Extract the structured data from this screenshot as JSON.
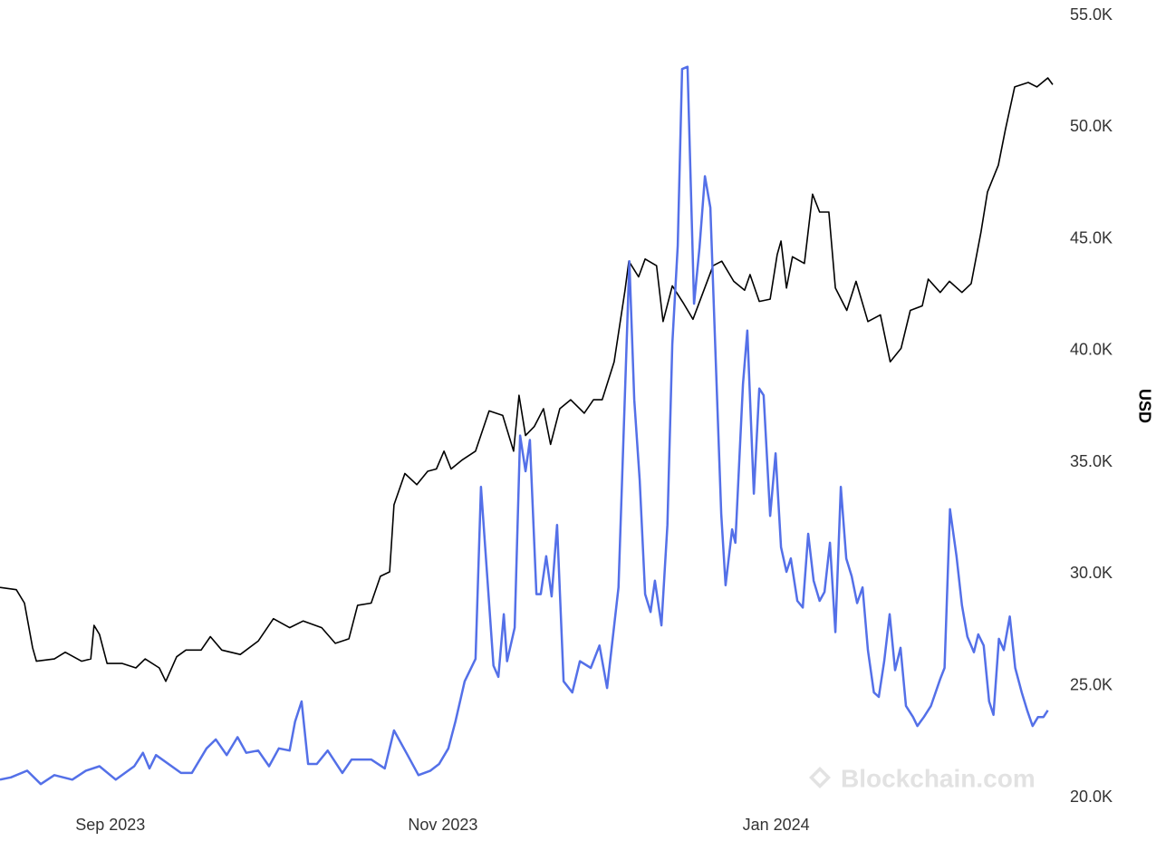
{
  "chart_data": {
    "type": "line",
    "y_label": "USD",
    "watermark": "Blockchain.com",
    "xlim": [
      0,
      212.7
    ],
    "xticks": [
      {
        "value": 20.3,
        "label": "Sep 2023"
      },
      {
        "value": 81.5,
        "label": "Nov 2023"
      },
      {
        "value": 142.8,
        "label": "Jan 2024"
      }
    ],
    "ylim": [
      20000,
      55000
    ],
    "yticks": [
      {
        "value": 20000,
        "label": "20.0K"
      },
      {
        "value": 25000,
        "label": "25.0K"
      },
      {
        "value": 30000,
        "label": "30.0K"
      },
      {
        "value": 35000,
        "label": "35.0K"
      },
      {
        "value": 40000,
        "label": "40.0K"
      },
      {
        "value": 45000,
        "label": "45.0K"
      },
      {
        "value": 50000,
        "label": "50.0K"
      },
      {
        "value": 55000,
        "label": "55.0K"
      }
    ],
    "grid": false,
    "series": [
      {
        "color": "#000000",
        "x": [
          0,
          3,
          4.5,
          6,
          6.7,
          10,
          12,
          15,
          16.7,
          17.3,
          18.3,
          19.7,
          22.5,
          25,
          26.7,
          29.3,
          30.5,
          32.5,
          34.2,
          37,
          38.7,
          40.8,
          44.2,
          47.5,
          50.3,
          53.3,
          55.8,
          59.2,
          61.7,
          64.2,
          65.8,
          68.3,
          70,
          71.7,
          72.5,
          74.5,
          76.7,
          78.7,
          80.3,
          81.7,
          83,
          85,
          87.5,
          90,
          92.5,
          94.5,
          95.5,
          96.7,
          98.3,
          100,
          101.3,
          103,
          105,
          107.5,
          109.2,
          110.8,
          113,
          115,
          115.7,
          117.5,
          118.7,
          120.8,
          122,
          123.7,
          125.8,
          127.5,
          129.2,
          131.2,
          132.8,
          135,
          137,
          138,
          139.7,
          141.7,
          143,
          143.7,
          144.7,
          145.8,
          148,
          149.5,
          150.8,
          152.5,
          153.7,
          155.8,
          157.5,
          159.7,
          162,
          163.8,
          165.8,
          167.5,
          169.7,
          170.8,
          173,
          174.7,
          177,
          178.7,
          180.5,
          181.7,
          183.7,
          185,
          186.7,
          189.2,
          190.8,
          192.8,
          193.7
        ],
        "values": [
          29400,
          29300,
          28700,
          26700,
          26100,
          26200,
          26500,
          26100,
          26200,
          27700,
          27300,
          26000,
          26000,
          25800,
          26200,
          25800,
          25200,
          26300,
          26600,
          26600,
          27200,
          26600,
          26400,
          27000,
          28000,
          27600,
          27900,
          27600,
          26900,
          27100,
          28600,
          28700,
          29900,
          30100,
          33100,
          34500,
          34000,
          34600,
          34700,
          35500,
          34700,
          35100,
          35500,
          37300,
          37100,
          35500,
          38000,
          36200,
          36600,
          37400,
          35800,
          37400,
          37800,
          37200,
          37800,
          37800,
          39500,
          42700,
          44000,
          43300,
          44100,
          43800,
          41300,
          42900,
          42100,
          41400,
          42500,
          43800,
          44000,
          43100,
          42700,
          43400,
          42200,
          42300,
          44300,
          44900,
          42800,
          44200,
          43900,
          47000,
          46200,
          46200,
          42800,
          41800,
          43100,
          41300,
          41600,
          39500,
          40100,
          41800,
          42000,
          43200,
          42600,
          43100,
          42600,
          43000,
          45300,
          47100,
          48300,
          49900,
          51800,
          52000,
          51800,
          52200,
          51900
        ]
      },
      {
        "color": "#5470e8",
        "x": [
          0,
          2,
          5,
          7.5,
          10,
          13.3,
          15.8,
          18.3,
          21.3,
          24.7,
          26.3,
          27.5,
          28.7,
          33.3,
          35.3,
          38,
          39.7,
          41.7,
          43.7,
          45.3,
          47.5,
          49.5,
          51.3,
          53.3,
          54.3,
          55.5,
          56.7,
          58.3,
          60.3,
          63,
          64.7,
          68.3,
          70.8,
          72.5,
          75,
          77,
          79.2,
          80.8,
          82.5,
          83.8,
          85.5,
          87.5,
          88.5,
          90.8,
          91.7,
          92.7,
          93.3,
          94.7,
          95.7,
          96.7,
          97.5,
          98.7,
          99.5,
          100.5,
          101.5,
          102.5,
          103.7,
          105.3,
          106.7,
          108.7,
          110.3,
          111.7,
          113.8,
          115.8,
          116.7,
          117.7,
          118.7,
          119.7,
          120.5,
          121.7,
          122.8,
          123.7,
          124.7,
          125.5,
          126.5,
          127.7,
          128.7,
          129.7,
          130.7,
          131.7,
          132.7,
          133.5,
          134.7,
          135.3,
          136.7,
          137.5,
          138.7,
          139.7,
          140.5,
          141.7,
          142.7,
          143.7,
          144.7,
          145.5,
          146.7,
          147.7,
          148.7,
          149.7,
          150.8,
          151.7,
          152.7,
          153.7,
          154.7,
          155.7,
          156.7,
          157.7,
          158.7,
          159.7,
          160.8,
          161.7,
          162.7,
          163.7,
          164.7,
          165.7,
          166.7,
          168,
          168.8,
          170,
          171.3,
          173,
          173.8,
          174.8,
          176,
          177,
          178,
          179.2,
          180,
          181,
          182,
          182.8,
          183.8,
          184.7,
          185.8,
          186.8,
          188,
          189,
          190,
          191,
          192,
          192.8
        ],
        "values": [
          20800,
          20900,
          21200,
          20600,
          21000,
          20800,
          21200,
          21400,
          20800,
          21400,
          22000,
          21300,
          21900,
          21100,
          21100,
          22200,
          22600,
          21900,
          22700,
          22000,
          22100,
          21400,
          22200,
          22100,
          23400,
          24300,
          21500,
          21500,
          22100,
          21100,
          21700,
          21700,
          21300,
          23000,
          21900,
          21000,
          21200,
          21500,
          22200,
          23400,
          25200,
          26200,
          33900,
          25900,
          25400,
          28200,
          26100,
          27600,
          36200,
          34600,
          36000,
          29100,
          29100,
          30800,
          29000,
          32200,
          25200,
          24700,
          26100,
          25800,
          26800,
          24900,
          29400,
          44000,
          37800,
          34200,
          29100,
          28300,
          29700,
          27700,
          32200,
          40300,
          44700,
          52600,
          52700,
          42100,
          44600,
          47800,
          46400,
          39500,
          32700,
          29500,
          32000,
          31400,
          38500,
          40900,
          33600,
          38300,
          38000,
          32600,
          35400,
          31200,
          30100,
          30700,
          28800,
          28500,
          31800,
          29700,
          28800,
          29200,
          31400,
          27400,
          33900,
          30700,
          29900,
          28700,
          29400,
          26600,
          24700,
          24500,
          26100,
          28200,
          25700,
          26700,
          24100,
          23600,
          23200,
          23600,
          24100,
          25300,
          25800,
          32900,
          30800,
          28600,
          27200,
          26500,
          27300,
          26800,
          24300,
          23700,
          27100,
          26600,
          28100,
          25800,
          24700,
          23900,
          23200,
          23600,
          23600,
          23900
        ]
      }
    ]
  }
}
